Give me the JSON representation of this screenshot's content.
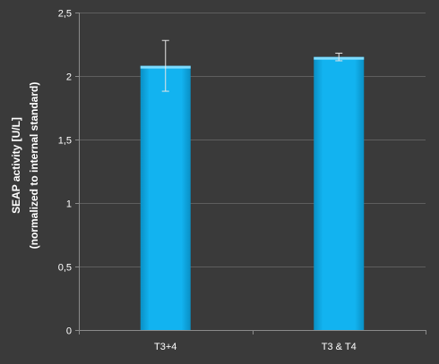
{
  "chart_data": {
    "type": "bar",
    "categories": [
      "T3+4",
      "T3 & T4"
    ],
    "values": [
      2.08,
      2.15
    ],
    "errors": [
      0.2,
      0.03
    ],
    "ylabel_lines": [
      "SEAP activity  [U/L]",
      "(normalized to internal standard)"
    ],
    "xlabel": "",
    "ylim": [
      0,
      2.5
    ],
    "yticks": [
      0,
      0.5,
      1,
      1.5,
      2,
      2.5
    ],
    "ytick_labels": [
      "0",
      "0,5",
      "1",
      "1,5",
      "2",
      "2,5"
    ],
    "grid": true,
    "legend": "none"
  },
  "colors": {
    "background": "#3a3a3a",
    "gridline": "#5e5e5e",
    "axis": "#8a8a8a",
    "bar": "#12b3f0",
    "bar_edge": "#0a8fc4",
    "bar_top": "#7fdcff",
    "errorbar": "#e6e6e6",
    "text": "#ffffff"
  }
}
